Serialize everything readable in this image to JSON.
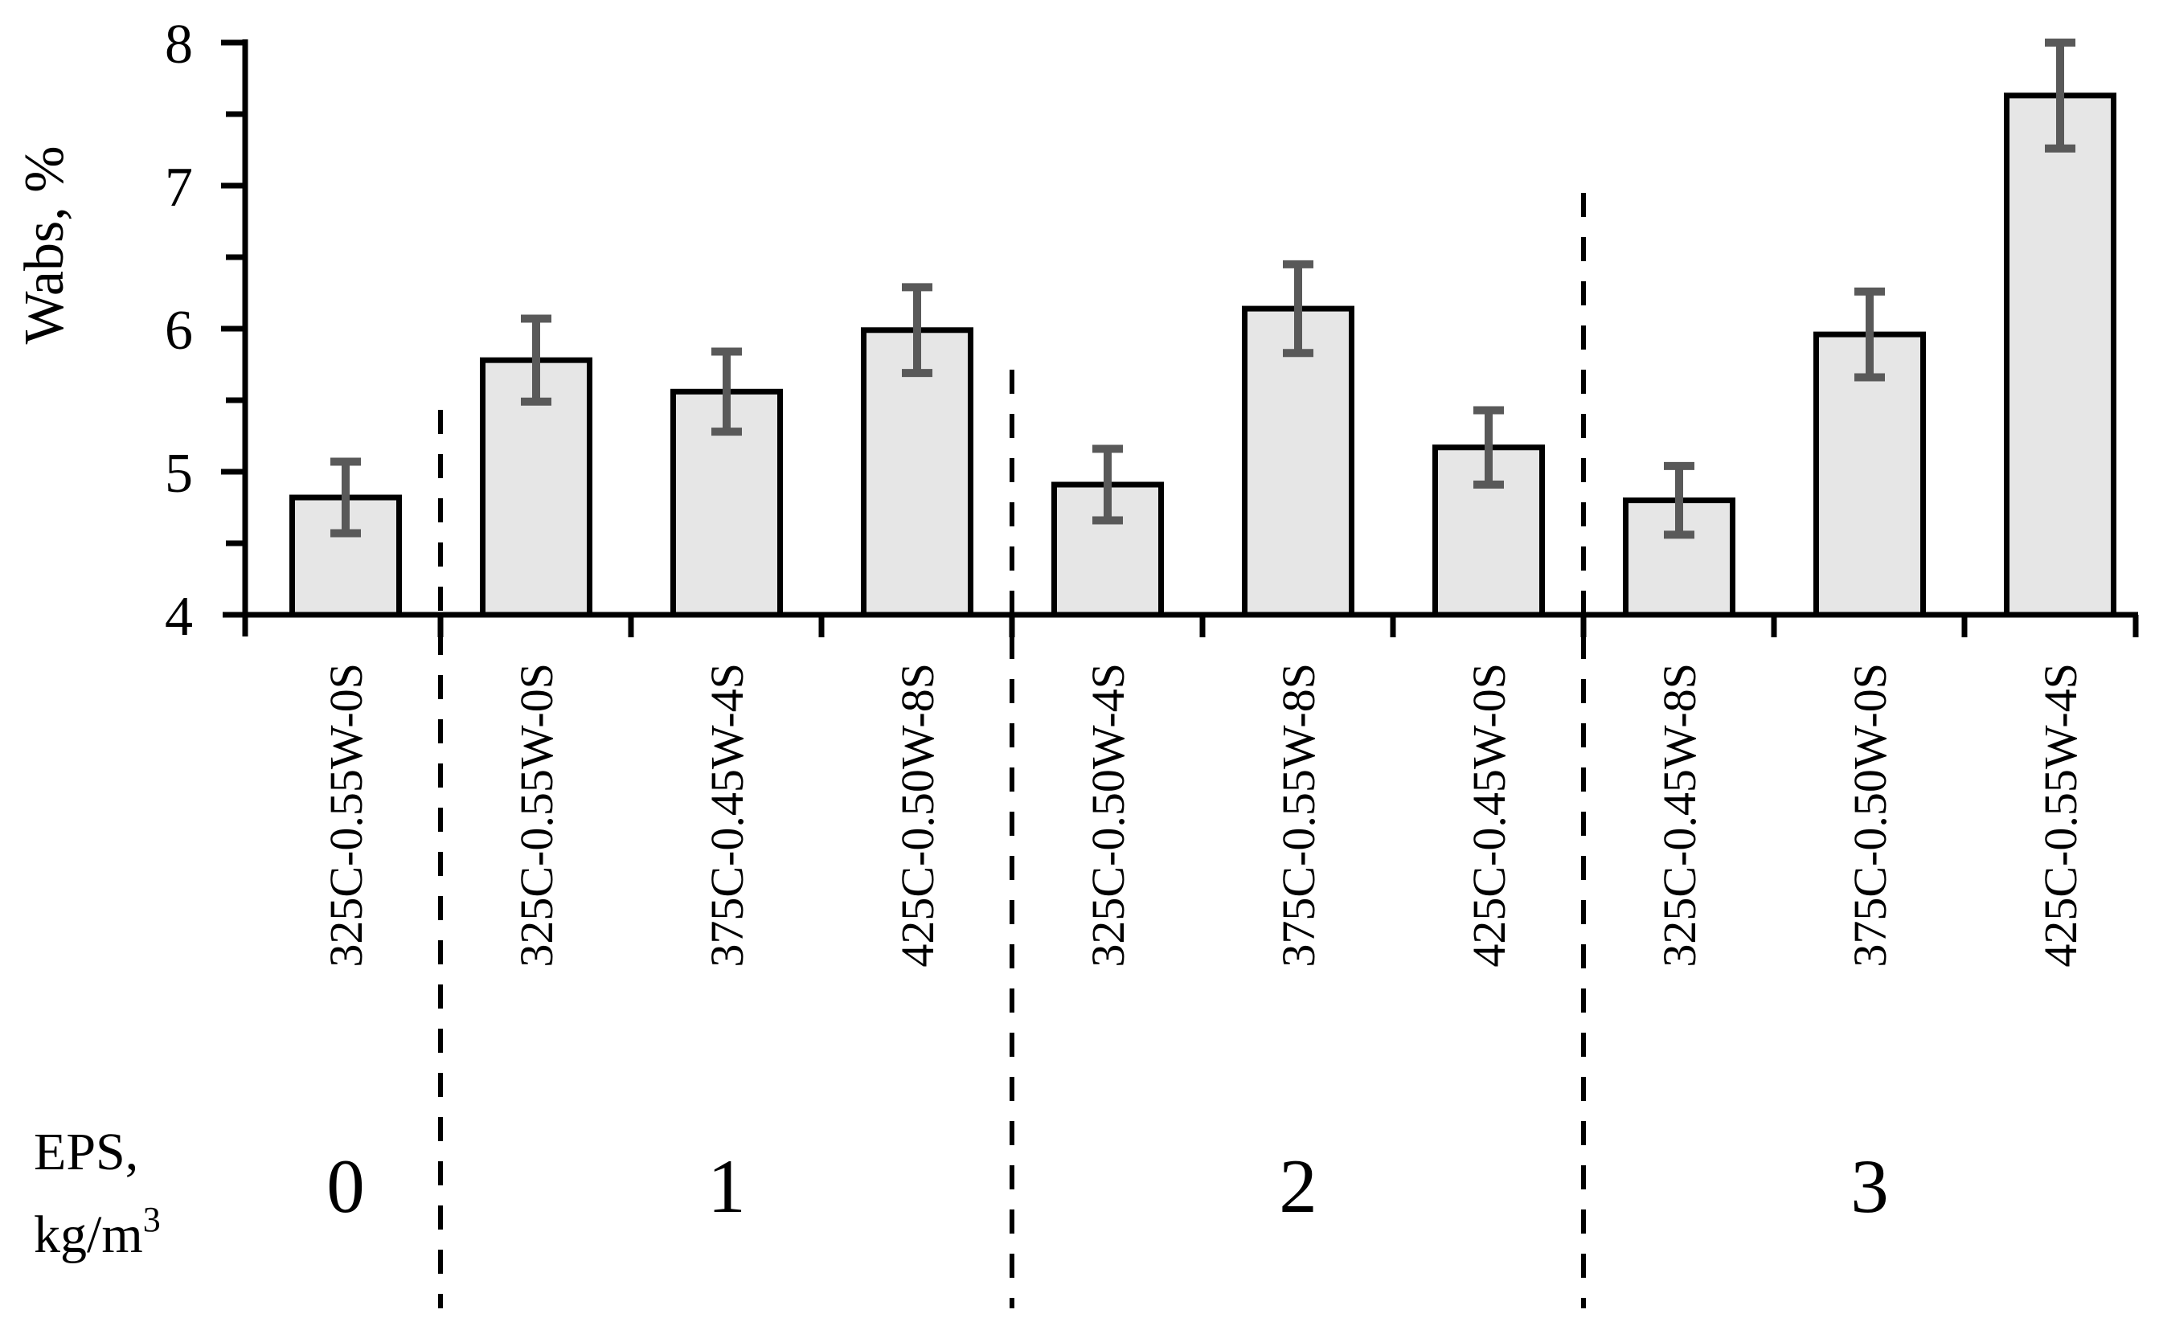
{
  "chart_data": {
    "type": "bar",
    "title": "",
    "ylabel": "Wabs, %",
    "xlabel": "",
    "ylim": [
      4,
      8
    ],
    "yticks": [
      "4",
      "5",
      "6",
      "7",
      "8"
    ],
    "minor_ticks": [
      4.5,
      5.5,
      6.5,
      7.5
    ],
    "grid": "off",
    "legend_position": "none",
    "group_axis_label": {
      "line1": "EPS,",
      "line2_base": "kg/m",
      "line2_sup": "3"
    },
    "bar_fill_color": "#e6e6e6",
    "bar_border_color": "#000000",
    "error_bar_color": "#595959",
    "separator_style": "dashed",
    "groups": [
      {
        "eps": "0",
        "bars": [
          {
            "label": "325C-0.55W-0S",
            "value": 4.82,
            "err": 0.25
          }
        ]
      },
      {
        "eps": "1",
        "bars": [
          {
            "label": "325C-0.55W-0S",
            "value": 5.78,
            "err": 0.29
          },
          {
            "label": "375C-0.45W-4S",
            "value": 5.56,
            "err": 0.28
          },
          {
            "label": "425C-0.50W-8S",
            "value": 5.99,
            "err": 0.3
          }
        ]
      },
      {
        "eps": "2",
        "bars": [
          {
            "label": "325C-0.50W-4S",
            "value": 4.91,
            "err": 0.25
          },
          {
            "label": "375C-0.55W-8S",
            "value": 6.14,
            "err": 0.31
          },
          {
            "label": "425C-0.45W-0S",
            "value": 5.17,
            "err": 0.26
          }
        ]
      },
      {
        "eps": "3",
        "bars": [
          {
            "label": "325C-0.45W-8S",
            "value": 4.8,
            "err": 0.24
          },
          {
            "label": "375C-0.50W-0S",
            "value": 5.96,
            "err": 0.3
          },
          {
            "label": "425C-0.55W-4S",
            "value": 7.63,
            "err": 0.37
          }
        ]
      }
    ]
  }
}
